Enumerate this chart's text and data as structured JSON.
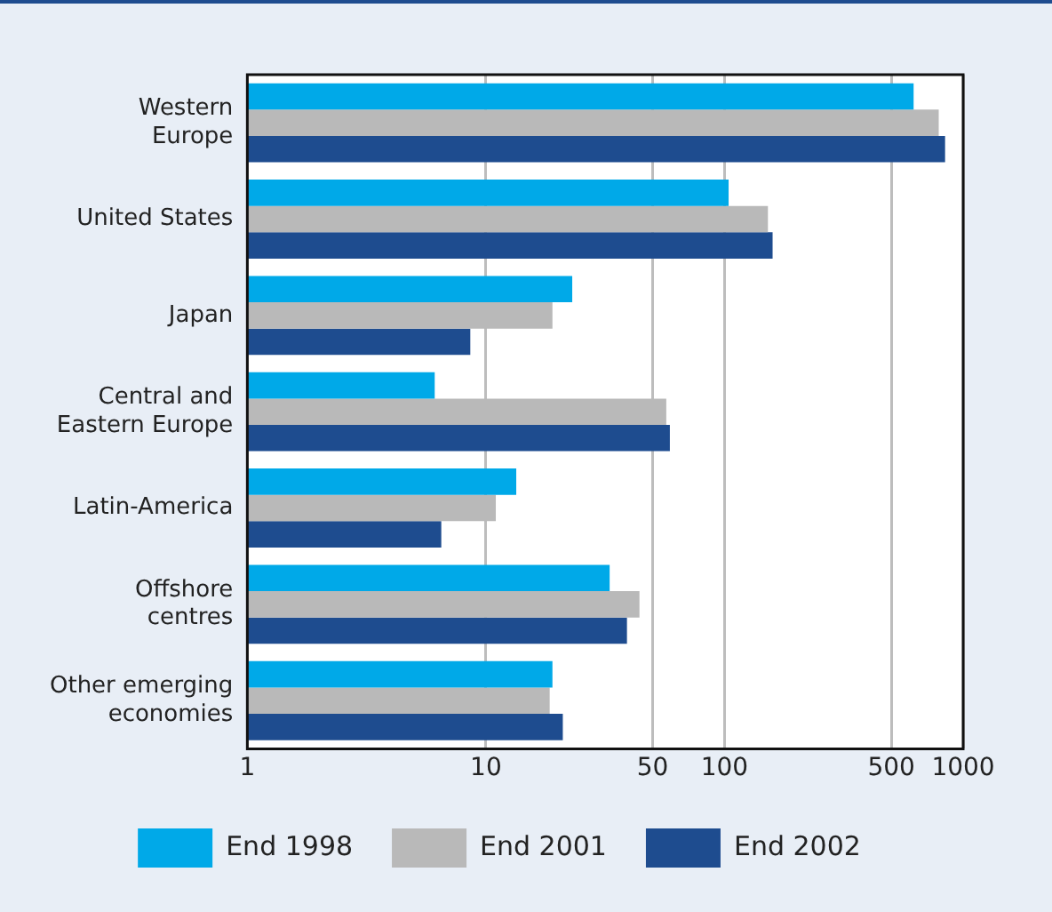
{
  "chart_data": {
    "type": "bar",
    "orientation": "horizontal",
    "log": "x",
    "categories": [
      "Western\nEurope",
      "United States",
      "Japan",
      "Central and\nEastern Europe",
      "Latin-America",
      "Offshore\ncentres",
      "Other emerging\neconomies"
    ],
    "series": [
      {
        "name": "End 1998",
        "color": "#00a9e8",
        "values": [
          620,
          104,
          23,
          6.1,
          13.4,
          33,
          19
        ]
      },
      {
        "name": "End 2001",
        "color": "#b9b9b9",
        "values": [
          790,
          152,
          19,
          57,
          11,
          44,
          18.5
        ]
      },
      {
        "name": "End 2002",
        "color": "#1e4c8f",
        "values": [
          840,
          159,
          8.6,
          59,
          6.5,
          39,
          21
        ]
      }
    ],
    "xlim": [
      1,
      1000
    ],
    "xticks": [
      1,
      10,
      50,
      100,
      500,
      1000
    ],
    "grid": "x",
    "legend": "bottom"
  }
}
